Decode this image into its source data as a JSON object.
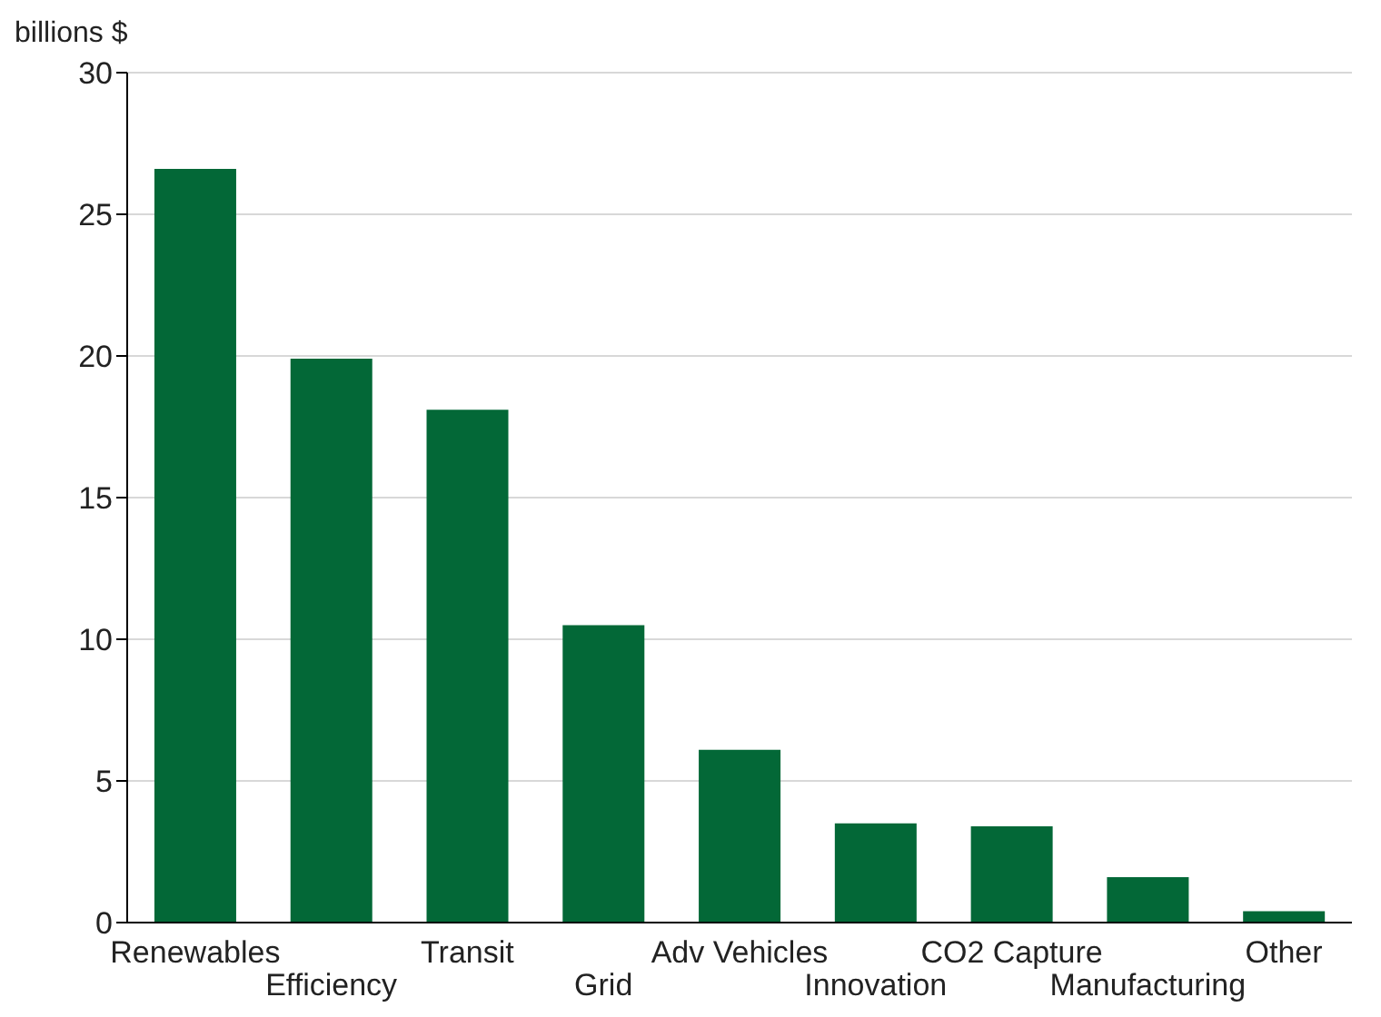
{
  "chart_data": {
    "type": "bar",
    "ylabel": "billions $",
    "categories": [
      "Renewables",
      "Efficiency",
      "Transit",
      "Grid",
      "Adv Vehicles",
      "Innovation",
      "CO2 Capture",
      "Manufacturing",
      "Other"
    ],
    "values": [
      26.6,
      19.9,
      18.1,
      10.5,
      6.1,
      3.5,
      3.4,
      1.6,
      0.4
    ],
    "color": "#036837",
    "ylim": [
      0,
      30
    ],
    "yticks": [
      0,
      5,
      10,
      15,
      20,
      25,
      30
    ],
    "grid": "y"
  }
}
